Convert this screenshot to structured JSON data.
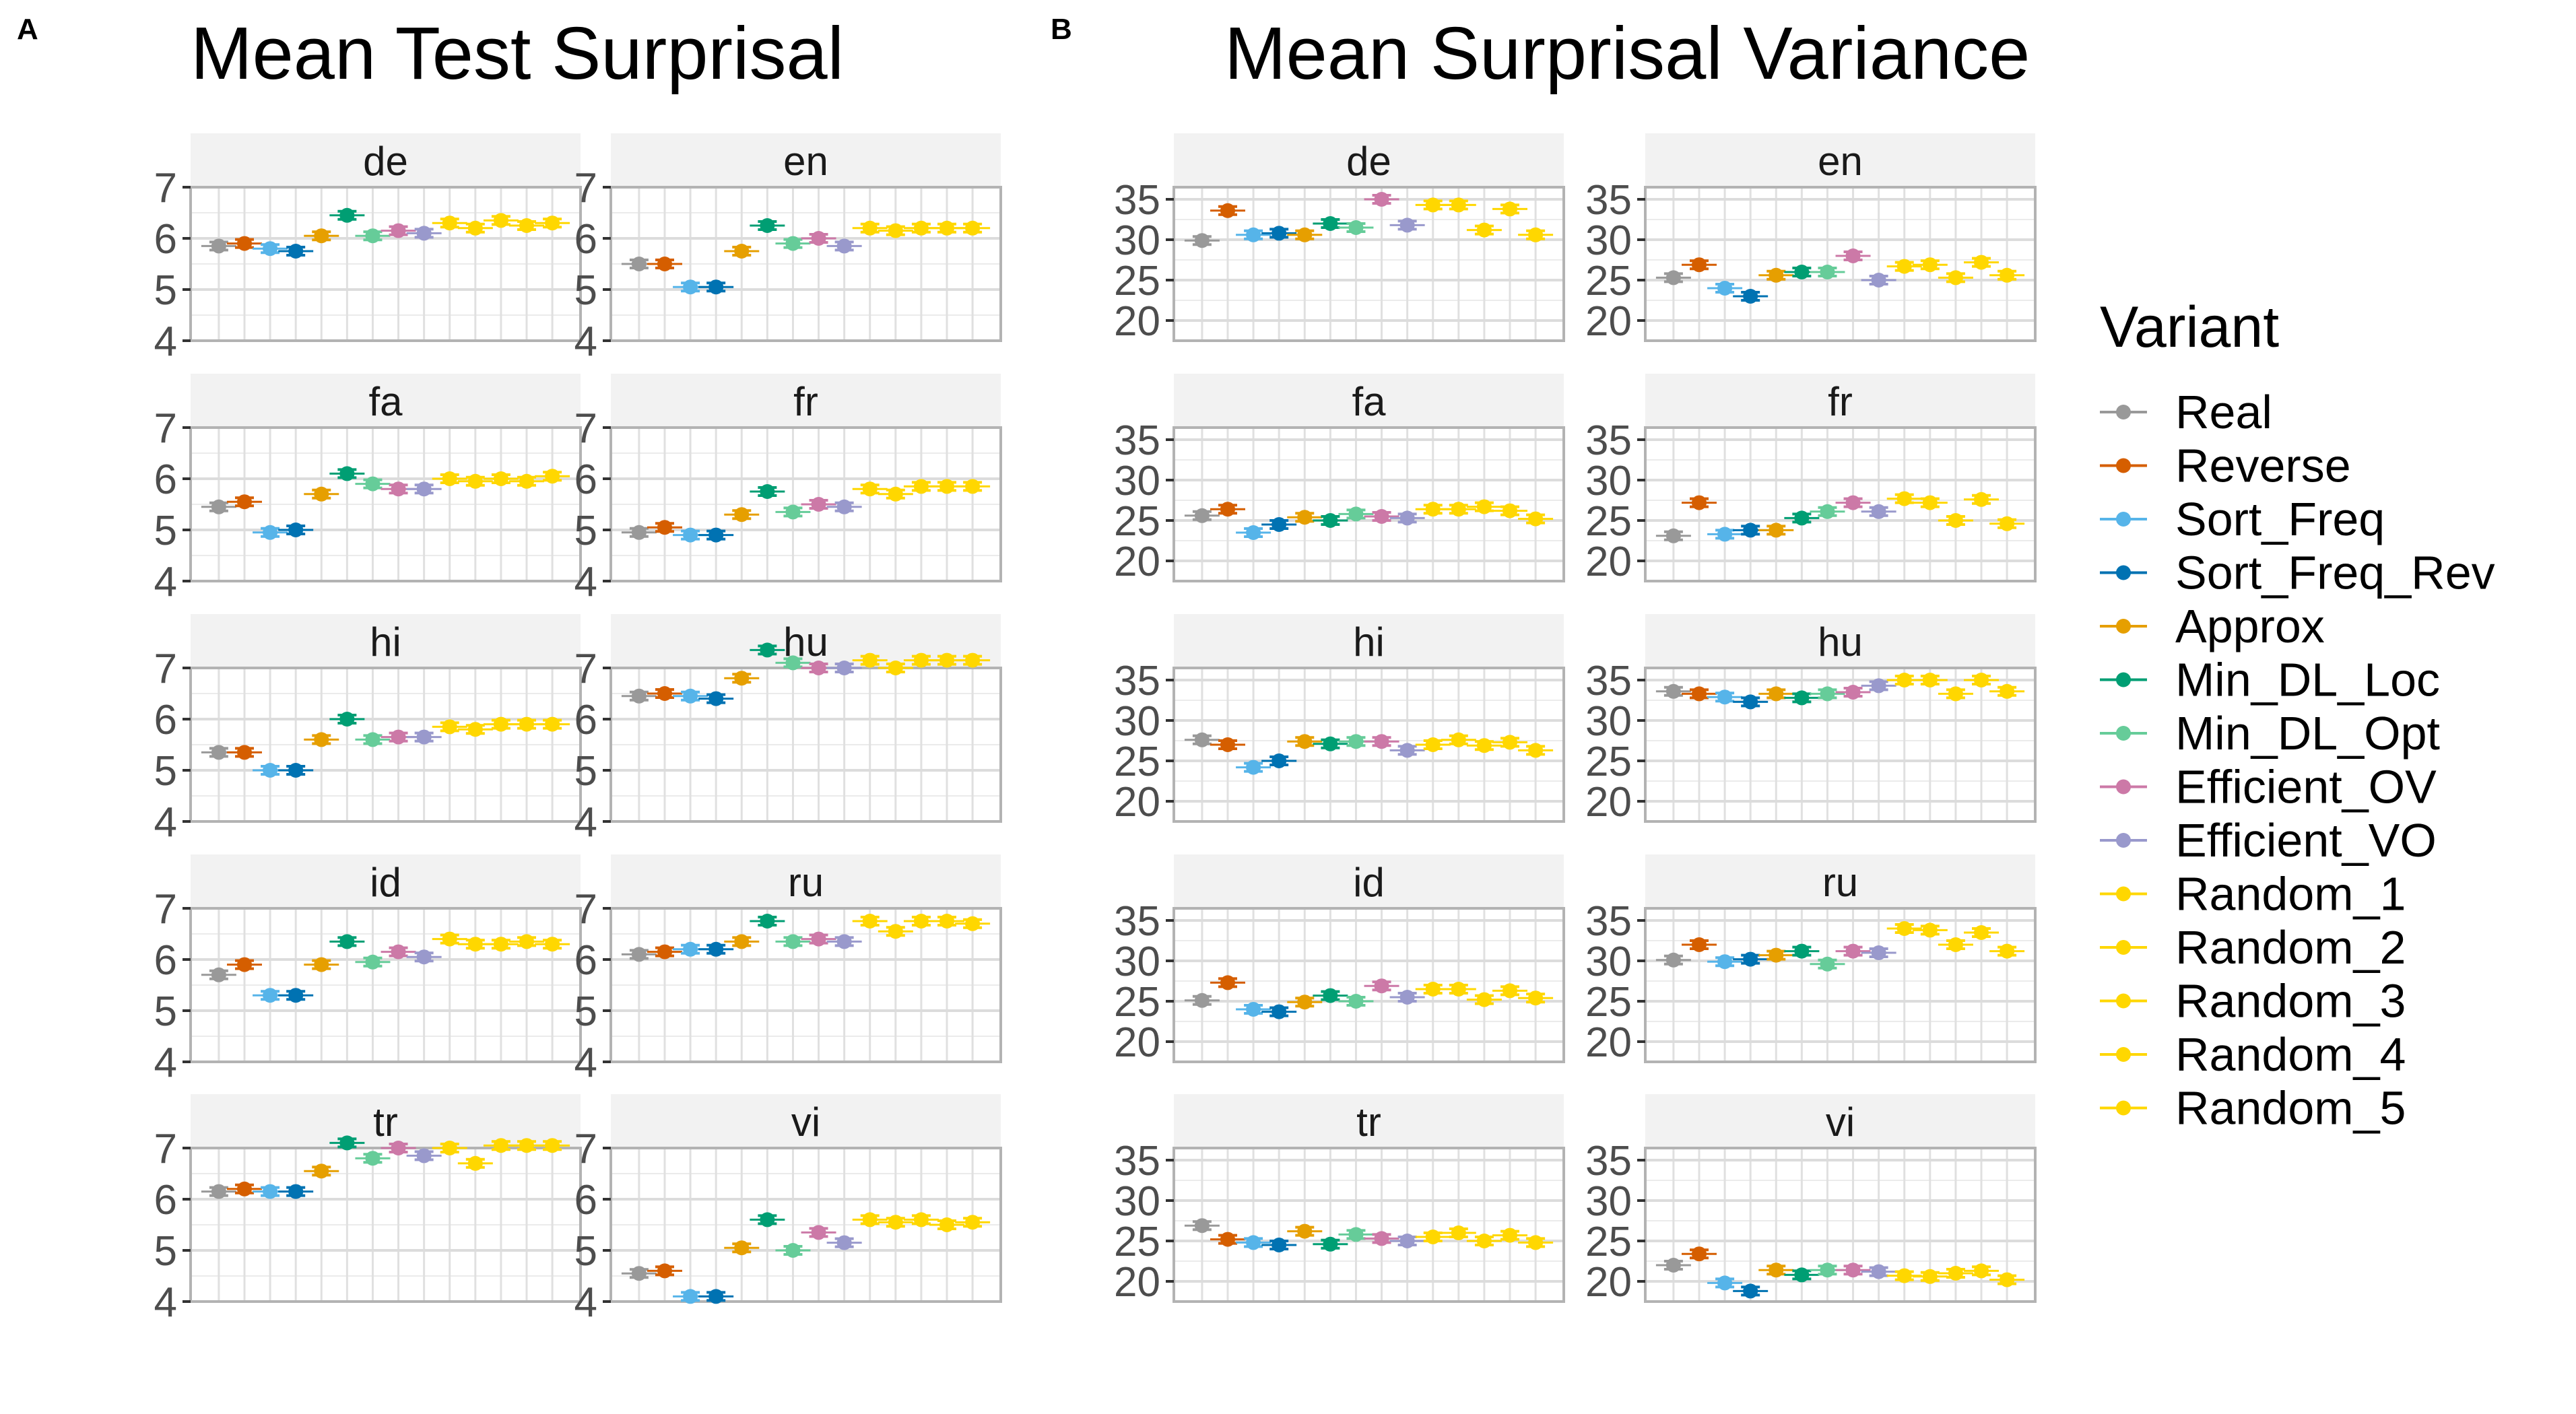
{
  "figure": {
    "legend_title": "Variant",
    "variants": [
      {
        "name": "Real",
        "color": "#999999"
      },
      {
        "name": "Reverse",
        "color": "#D55E00"
      },
      {
        "name": "Sort_Freq",
        "color": "#56B4E9"
      },
      {
        "name": "Sort_Freq_Rev",
        "color": "#0072B2"
      },
      {
        "name": "Approx",
        "color": "#E69F00"
      },
      {
        "name": "Min_DL_Loc",
        "color": "#009E73"
      },
      {
        "name": "Min_DL_Opt",
        "color": "#66CC99"
      },
      {
        "name": "Efficient_OV",
        "color": "#CC79A7"
      },
      {
        "name": "Efficient_VO",
        "color": "#9999CC"
      },
      {
        "name": "Random_1",
        "color": "#FFD700"
      },
      {
        "name": "Random_2",
        "color": "#FFD700"
      },
      {
        "name": "Random_3",
        "color": "#FFD700"
      },
      {
        "name": "Random_4",
        "color": "#FFD700"
      },
      {
        "name": "Random_5",
        "color": "#FFD700"
      }
    ]
  },
  "chart_data": [
    {
      "type": "scatter",
      "panel_tag": "A",
      "title": "Mean Test Surprisal",
      "ylim": [
        4,
        7
      ],
      "yticks": [
        4,
        5,
        6,
        7
      ],
      "grid": true,
      "facets": [
        {
          "label": "de",
          "values": [
            5.85,
            5.9,
            5.8,
            5.75,
            6.05,
            6.45,
            6.05,
            6.15,
            6.1,
            6.3,
            6.2,
            6.35,
            6.25,
            6.3
          ]
        },
        {
          "label": "en",
          "values": [
            5.5,
            5.5,
            5.05,
            5.05,
            5.75,
            6.25,
            5.9,
            6.0,
            5.85,
            6.2,
            6.15,
            6.2,
            6.2,
            6.2
          ]
        },
        {
          "label": "fa",
          "values": [
            5.45,
            5.55,
            4.95,
            5.0,
            5.7,
            6.1,
            5.9,
            5.8,
            5.8,
            6.0,
            5.95,
            6.0,
            5.95,
            6.05
          ]
        },
        {
          "label": "fr",
          "values": [
            4.95,
            5.05,
            4.9,
            4.9,
            5.3,
            5.75,
            5.35,
            5.5,
            5.45,
            5.8,
            5.7,
            5.85,
            5.85,
            5.85
          ]
        },
        {
          "label": "hi",
          "values": [
            5.35,
            5.35,
            5.0,
            5.0,
            5.6,
            6.0,
            5.6,
            5.65,
            5.65,
            5.85,
            5.8,
            5.9,
            5.9,
            5.9
          ]
        },
        {
          "label": "hu",
          "values": [
            6.45,
            6.5,
            6.45,
            6.4,
            6.8,
            7.35,
            7.1,
            7.0,
            7.0,
            7.15,
            7.0,
            7.15,
            7.15,
            7.15
          ]
        },
        {
          "label": "id",
          "values": [
            5.7,
            5.9,
            5.3,
            5.3,
            5.9,
            6.35,
            5.95,
            6.15,
            6.05,
            6.4,
            6.3,
            6.3,
            6.35,
            6.3
          ]
        },
        {
          "label": "ru",
          "values": [
            6.1,
            6.15,
            6.2,
            6.2,
            6.35,
            6.75,
            6.35,
            6.4,
            6.35,
            6.75,
            6.55,
            6.75,
            6.75,
            6.7
          ]
        },
        {
          "label": "tr",
          "values": [
            6.15,
            6.2,
            6.15,
            6.15,
            6.55,
            7.1,
            6.8,
            7.0,
            6.85,
            7.0,
            6.7,
            7.05,
            7.05,
            7.05
          ]
        },
        {
          "label": "vi",
          "values": [
            4.55,
            4.6,
            4.1,
            4.1,
            5.05,
            5.6,
            5.0,
            5.35,
            5.15,
            5.6,
            5.55,
            5.6,
            5.5,
            5.55
          ]
        }
      ]
    },
    {
      "type": "scatter",
      "panel_tag": "B",
      "title": "Mean Surprisal Variance",
      "ylim": [
        17.5,
        36.5
      ],
      "yticks": [
        20,
        25,
        30,
        35
      ],
      "grid": true,
      "facets": [
        {
          "label": "de",
          "values": [
            29.9,
            33.6,
            30.6,
            30.8,
            30.6,
            32.0,
            31.5,
            35.0,
            31.8,
            34.3,
            34.3,
            31.2,
            33.8,
            30.6
          ]
        },
        {
          "label": "en",
          "values": [
            25.3,
            26.9,
            24.0,
            23.0,
            25.6,
            26.0,
            26.0,
            28.0,
            25.0,
            26.7,
            26.9,
            25.3,
            27.2,
            25.6
          ]
        },
        {
          "label": "fa",
          "values": [
            25.6,
            26.4,
            23.5,
            24.5,
            25.4,
            25.0,
            25.8,
            25.5,
            25.3,
            26.4,
            26.4,
            26.7,
            26.2,
            25.2
          ]
        },
        {
          "label": "fr",
          "values": [
            23.1,
            27.2,
            23.3,
            23.8,
            23.8,
            25.3,
            26.1,
            27.2,
            26.1,
            27.7,
            27.2,
            25.0,
            27.6,
            24.6
          ]
        },
        {
          "label": "hi",
          "values": [
            27.6,
            27.0,
            24.2,
            25.0,
            27.4,
            27.1,
            27.4,
            27.4,
            26.3,
            27.0,
            27.6,
            26.9,
            27.3,
            26.3
          ]
        },
        {
          "label": "hu",
          "values": [
            33.6,
            33.3,
            32.9,
            32.3,
            33.3,
            32.8,
            33.3,
            33.5,
            34.3,
            35.0,
            35.0,
            33.3,
            35.0,
            33.6
          ]
        },
        {
          "label": "id",
          "values": [
            25.1,
            27.3,
            24.0,
            23.7,
            24.9,
            25.7,
            25.0,
            26.9,
            25.5,
            26.5,
            26.5,
            25.2,
            26.3,
            25.4
          ]
        },
        {
          "label": "ru",
          "values": [
            30.1,
            32.0,
            29.9,
            30.2,
            30.7,
            31.2,
            29.6,
            31.2,
            31.0,
            34.0,
            33.8,
            32.0,
            33.5,
            31.2
          ]
        },
        {
          "label": "tr",
          "values": [
            26.9,
            25.2,
            24.8,
            24.5,
            26.2,
            24.6,
            25.8,
            25.3,
            25.0,
            25.5,
            26.0,
            25.0,
            25.7,
            24.8
          ]
        },
        {
          "label": "vi",
          "values": [
            22.0,
            23.4,
            19.8,
            18.8,
            21.4,
            20.8,
            21.4,
            21.4,
            21.2,
            20.7,
            20.6,
            21.0,
            21.3,
            20.2
          ]
        }
      ]
    }
  ]
}
